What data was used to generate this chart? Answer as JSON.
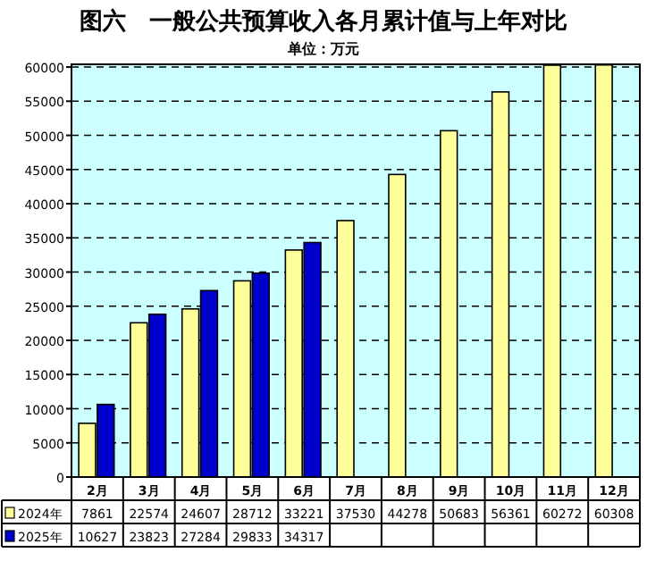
{
  "chart_data": {
    "type": "bar",
    "title": "图六　一般公共预算收入各月累计值与上年对比",
    "subtitle": "单位：万元",
    "categories": [
      "2月",
      "3月",
      "4月",
      "5月",
      "6月",
      "7月",
      "8月",
      "9月",
      "10月",
      "11月",
      "12月"
    ],
    "series": [
      {
        "name": "2024年",
        "color": "#ffff99",
        "values": [
          7861,
          22574,
          24607,
          28712,
          33221,
          37530,
          44278,
          50683,
          56361,
          60272,
          60308
        ]
      },
      {
        "name": "2025年",
        "color": "#0000cc",
        "values": [
          10627,
          23823,
          27284,
          29833,
          34317,
          null,
          null,
          null,
          null,
          null,
          null
        ]
      }
    ],
    "ylim": [
      0,
      60400
    ],
    "yticks": [
      0,
      5000,
      10000,
      15000,
      20000,
      25000,
      30000,
      35000,
      40000,
      45000,
      50000,
      55000,
      60000
    ],
    "grid": "y",
    "data_labels": true,
    "legend": "bottom"
  }
}
